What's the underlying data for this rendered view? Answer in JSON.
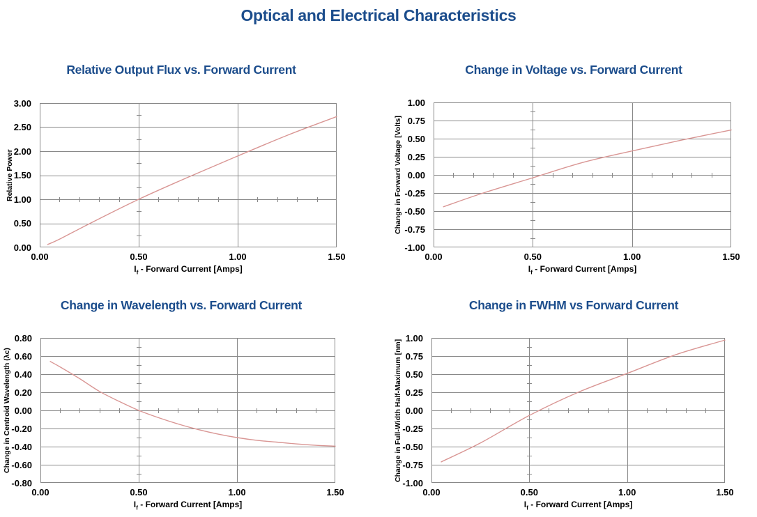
{
  "page": {
    "title": "Optical and Electrical Characteristics",
    "title_color": "#1c4d8c",
    "background_color": "#ffffff"
  },
  "chart_data": [
    {
      "type": "line",
      "title": "Relative Output Flux vs. Forward Current",
      "ylabel": "Relative Power",
      "xlabel": {
        "base": "I",
        "sub": "f",
        "rest": " - Forward Current [Amps]"
      },
      "ylim": [
        0,
        3
      ],
      "ystep": 0.5,
      "xlim": [
        0,
        1.5
      ],
      "xstep": 0.5,
      "yticks": [
        "0.00",
        "0.50",
        "1.00",
        "1.50",
        "2.00",
        "2.50",
        "3.00"
      ],
      "xticks": [
        "0.00",
        "0.50",
        "1.00",
        "1.50"
      ],
      "vgridlines": [
        0.5,
        1.0
      ],
      "axis_cross": {
        "x": 0.5,
        "y": 1.0
      },
      "minor_x": 0.1,
      "minor_y": 0.25,
      "grid": true,
      "legend": false,
      "grid_color": "#888888",
      "line_color": "#d99694",
      "series": [
        {
          "name": "Relative Power",
          "x": [
            0.04,
            0.1,
            0.25,
            0.5,
            0.75,
            1.0,
            1.25,
            1.5
          ],
          "y": [
            0.06,
            0.17,
            0.49,
            1.0,
            1.46,
            1.9,
            2.33,
            2.72
          ]
        }
      ]
    },
    {
      "type": "line",
      "title": "Change in Voltage vs. Forward Current",
      "ylabel": "Change in Forward Voltage [Volts]",
      "xlabel": {
        "base": "I",
        "sub": "f",
        "rest": " - Forward Current [Amps]"
      },
      "ylim": [
        -1,
        1
      ],
      "ystep": 0.25,
      "xlim": [
        0,
        1.5
      ],
      "xstep": 0.5,
      "yticks": [
        "-1.00",
        "-0.75",
        "-0.50",
        "-0.25",
        "0.00",
        "0.25",
        "0.50",
        "0.75",
        "1.00"
      ],
      "xticks": [
        "0.00",
        "0.50",
        "1.00",
        "1.50"
      ],
      "vgridlines": [
        0.5,
        1.0
      ],
      "axis_cross": {
        "x": 0.5,
        "y": 0.0
      },
      "minor_x": 0.1,
      "minor_y": 0.125,
      "grid": true,
      "legend": false,
      "grid_color": "#888888",
      "line_color": "#d99694",
      "series": [
        {
          "name": "Change in Forward Voltage",
          "x": [
            0.05,
            0.25,
            0.5,
            0.75,
            1.0,
            1.25,
            1.5
          ],
          "y": [
            -0.44,
            -0.25,
            -0.04,
            0.17,
            0.33,
            0.48,
            0.62
          ]
        }
      ]
    },
    {
      "type": "line",
      "title": "Change in Wavelength vs. Forward Current",
      "ylabel": "Change in Centroid Wavelength (λc)",
      "xlabel": {
        "base": "I",
        "sub": "f",
        "rest": " - Forward Current [Amps]"
      },
      "ylim": [
        -0.8,
        0.8
      ],
      "ystep": 0.2,
      "xlim": [
        0,
        1.5
      ],
      "xstep": 0.5,
      "yticks": [
        "-0.80",
        "-0.60",
        "-0.40",
        "-0.20",
        "0.00",
        "0.20",
        "0.40",
        "0.60",
        "0.80"
      ],
      "xticks": [
        "0.00",
        "0.50",
        "1.00",
        "1.50"
      ],
      "vgridlines": [
        0.5,
        1.0
      ],
      "axis_cross": {
        "x": 0.5,
        "y": 0.0
      },
      "minor_x": 0.1,
      "minor_y": 0.1,
      "grid": true,
      "legend": false,
      "grid_color": "#888888",
      "line_color": "#d99694",
      "series": [
        {
          "name": "Change in Centroid Wavelength",
          "x": [
            0.05,
            0.1,
            0.2,
            0.3,
            0.4,
            0.5,
            0.6,
            0.7,
            0.8,
            0.9,
            1.0,
            1.1,
            1.2,
            1.3,
            1.4,
            1.5
          ],
          "y": [
            0.54,
            0.48,
            0.35,
            0.21,
            0.1,
            0.0,
            -0.08,
            -0.15,
            -0.21,
            -0.26,
            -0.3,
            -0.33,
            -0.35,
            -0.37,
            -0.385,
            -0.395
          ]
        }
      ]
    },
    {
      "type": "line",
      "title": "Change in FWHM vs Forward Current",
      "ylabel": "Change in Full-Width Half-Maximum  [nm]",
      "xlabel": {
        "base": "I",
        "sub": "f",
        "rest": " - Forward Current [Amps]"
      },
      "ylim": [
        -1,
        1
      ],
      "ystep": 0.25,
      "xlim": [
        0,
        1.5
      ],
      "xstep": 0.5,
      "yticks": [
        "-1.00",
        "-0.75",
        "-0.50",
        "-0.25",
        "0.00",
        "0.25",
        "0.50",
        "0.75",
        "1.00"
      ],
      "xticks": [
        "0.00",
        "0.50",
        "1.00",
        "1.50"
      ],
      "vgridlines": [
        0.5,
        1.0
      ],
      "axis_cross": {
        "x": 0.5,
        "y": 0.0
      },
      "minor_x": 0.1,
      "minor_y": 0.125,
      "grid": true,
      "legend": false,
      "grid_color": "#888888",
      "line_color": "#d99694",
      "series": [
        {
          "name": "Change in Full-Width Half-Maximum",
          "x": [
            0.05,
            0.25,
            0.5,
            0.75,
            1.0,
            1.25,
            1.5
          ],
          "y": [
            -0.71,
            -0.45,
            -0.07,
            0.25,
            0.51,
            0.77,
            0.97
          ]
        }
      ]
    }
  ]
}
